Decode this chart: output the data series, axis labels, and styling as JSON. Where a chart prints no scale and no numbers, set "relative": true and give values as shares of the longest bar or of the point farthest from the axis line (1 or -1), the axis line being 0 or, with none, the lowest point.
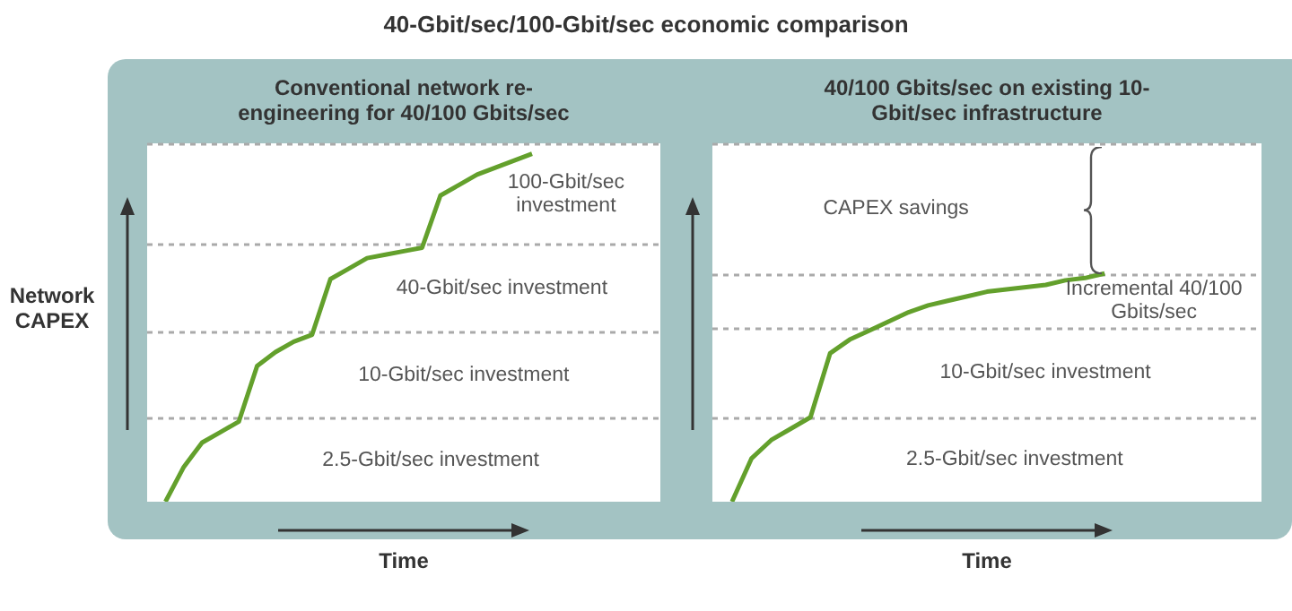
{
  "chart_data": [
    {
      "type": "line",
      "title": "Conventional network re-engineering for 40/100 Gbits/sec",
      "xlabel": "Time",
      "ylabel": "Network CAPEX",
      "annotations": [
        "40-Gbit/sec/100-Gbit/sec economic comparison",
        "2.5-Gbit/sec investment",
        "10-Gbit/sec investment",
        "40-Gbit/sec investment",
        "100-Gbit/sec investment"
      ],
      "relative": true,
      "categories": [
        null,
        null,
        null,
        null,
        null,
        null,
        null,
        null,
        null,
        null,
        null,
        null,
        null,
        null,
        null,
        null,
        null,
        null,
        null,
        null,
        null,
        null,
        null,
        null,
        null,
        null,
        null,
        null,
        null
      ],
      "values": [
        null,
        0,
        0.1,
        0.17,
        0.2,
        0.23,
        0.39,
        0.43,
        0.46,
        0.48,
        0.64,
        0.67,
        0.7,
        0.71,
        0.72,
        0.73,
        0.88,
        0.91,
        0.94,
        0.96,
        0.98,
        1,
        null,
        null,
        null,
        null,
        null,
        null,
        null
      ],
      "color": "#63a02c",
      "ref_lines": [
        {
          "axis": "y",
          "value": 0.24,
          "line_style": "dashed",
          "color": "#aaaaaa"
        },
        {
          "axis": "y",
          "value": 0.49,
          "line_style": "dashed",
          "color": "#aaaaaa"
        },
        {
          "axis": "y",
          "value": 0.74,
          "line_style": "dashed",
          "color": "#aaaaaa"
        },
        {
          "axis": "y",
          "value": 1.03,
          "line_style": "dashed",
          "color": "#aaaaaa"
        }
      ]
    },
    {
      "type": "line",
      "title": "40/100 Gbits/sec on existing 10-Gbit/sec infrastructure",
      "xlabel": "Time",
      "relative": true,
      "annotations": [
        "2.5-Gbit/sec investment",
        "10-Gbit/sec investment",
        "Incremental 40/100 Gbits/sec",
        "CAPEX savings"
      ],
      "categories": [
        null,
        null,
        null,
        null,
        null,
        null,
        null,
        null,
        null,
        null,
        null,
        null,
        null,
        null,
        null,
        null,
        null,
        null,
        null,
        null,
        null,
        null,
        null,
        null,
        null,
        null,
        null,
        null,
        null
      ],
      "values": [
        null,
        0,
        0.19,
        0.27,
        0.32,
        0.37,
        0.65,
        0.71,
        0.75,
        0.79,
        0.83,
        0.86,
        0.88,
        0.9,
        0.92,
        0.93,
        0.94,
        0.95,
        0.97,
        0.98,
        1,
        null,
        null,
        null,
        null,
        null,
        null,
        null,
        null
      ],
      "color": "#63a02c",
      "ref_lines": [
        {
          "axis": "y",
          "value": 0.37,
          "line_style": "dashed",
          "color": "#aaaaaa"
        },
        {
          "axis": "y",
          "value": 0.76,
          "line_style": "dashed",
          "color": "#aaaaaa"
        },
        {
          "axis": "y",
          "value": 1,
          "line_style": "dashed",
          "color": "#aaaaaa"
        },
        {
          "axis": "y",
          "value": 1.57,
          "line_style": "dashed",
          "color": "#aaaaaa"
        }
      ]
    }
  ]
}
